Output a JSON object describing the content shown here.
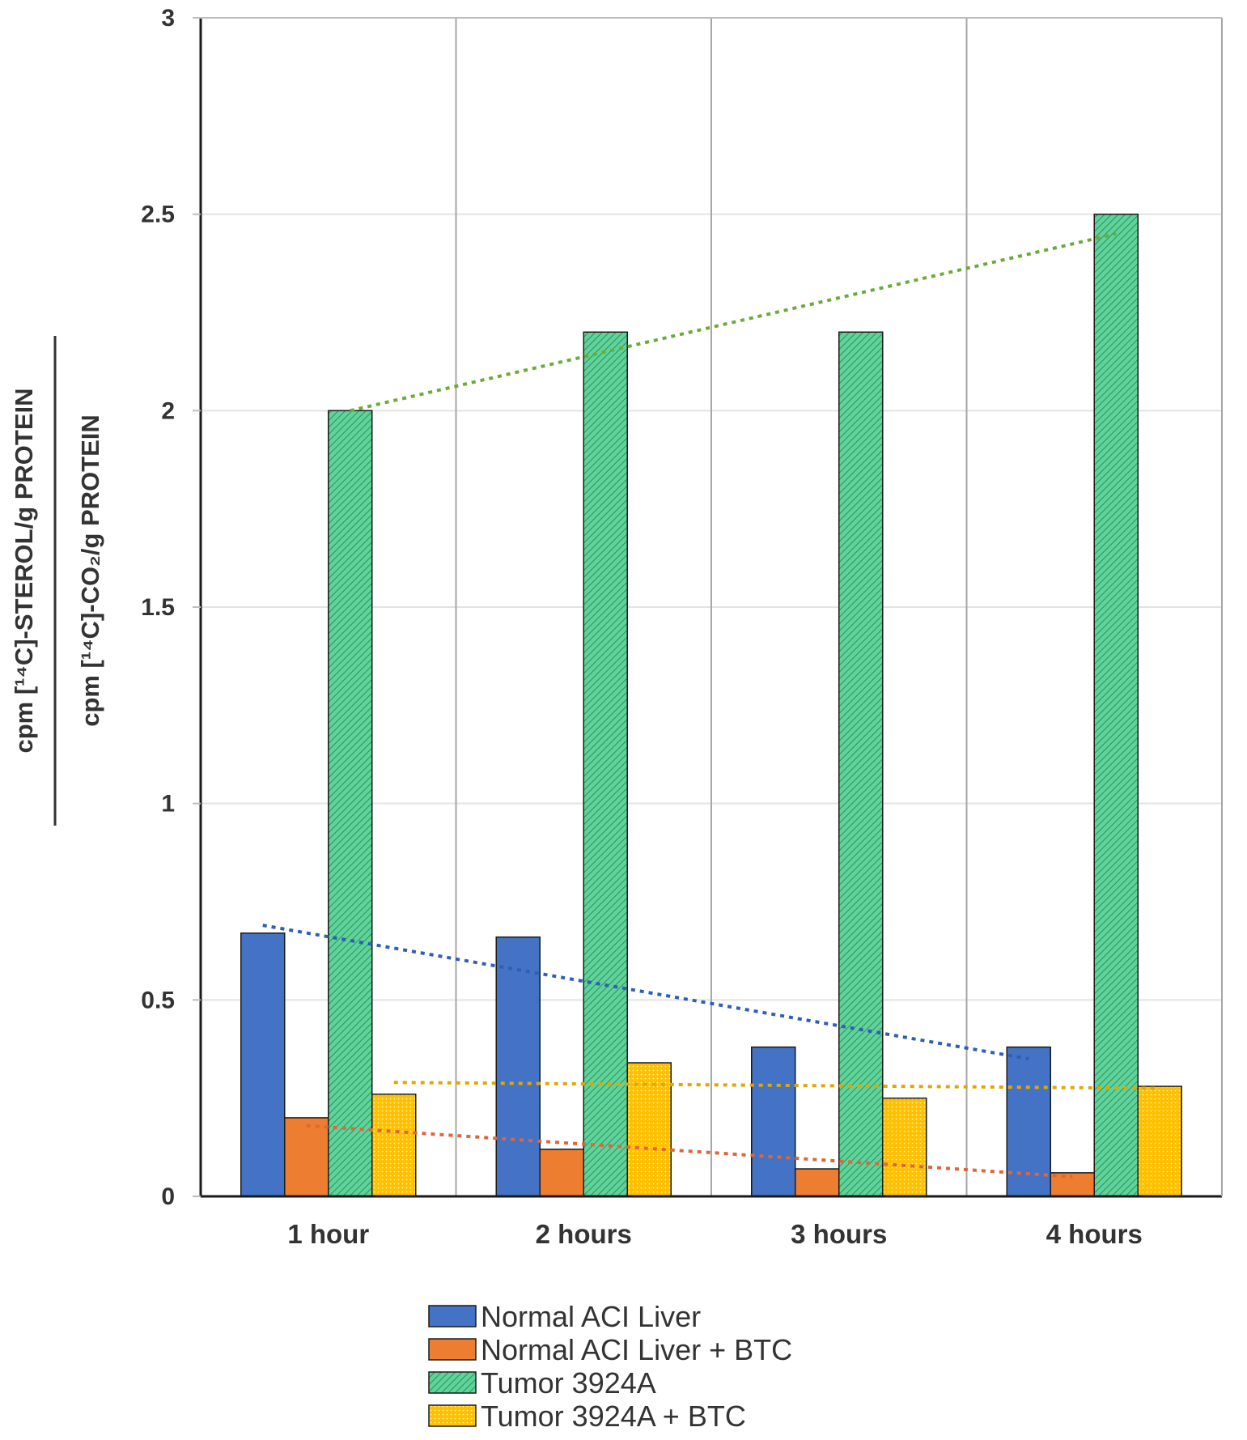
{
  "chart_data": {
    "type": "bar",
    "title": "",
    "xlabel": "",
    "ylabel": {
      "numerator": "cpm [¹⁴C]-STEROL/g PROTEIN",
      "denominator": "cpm [¹⁴C]-CO₂/g PROTEIN"
    },
    "ylim": [
      0,
      3
    ],
    "yticks": [
      0,
      0.5,
      1,
      1.5,
      2,
      2.5,
      3
    ],
    "ytick_labels": [
      "0",
      "0.5",
      "1",
      "1.5",
      "2",
      "2.5",
      "3"
    ],
    "categories": [
      "1 hour",
      "2 hours",
      "3 hours",
      "4 hours"
    ],
    "series": [
      {
        "name": "Normal ACI Liver",
        "color": "#4472c4",
        "values": [
          0.67,
          0.66,
          0.38,
          0.38
        ],
        "trend": [
          0.69,
          0.35
        ],
        "trend_color": "#2e5fb5"
      },
      {
        "name": "Normal ACI Liver + BTC",
        "color": "#ed7d31",
        "values": [
          0.2,
          0.12,
          0.07,
          0.06
        ],
        "trend": [
          0.18,
          0.05
        ],
        "trend_color": "#e0663a"
      },
      {
        "name": "Tumor 3924A",
        "color": "#5fd39a",
        "pattern": "hatched",
        "values": [
          2.0,
          2.2,
          2.2,
          2.5
        ],
        "trend": [
          2.0,
          2.45
        ],
        "trend_color": "#6aab3a"
      },
      {
        "name": "Tumor 3924A + BTC",
        "color": "#ffc000",
        "pattern": "dotted",
        "values": [
          0.26,
          0.34,
          0.25,
          0.28
        ],
        "trend": [
          0.29,
          0.275
        ],
        "trend_color": "#e0a800"
      }
    ],
    "grid": true,
    "legend_position": "bottom-center"
  }
}
